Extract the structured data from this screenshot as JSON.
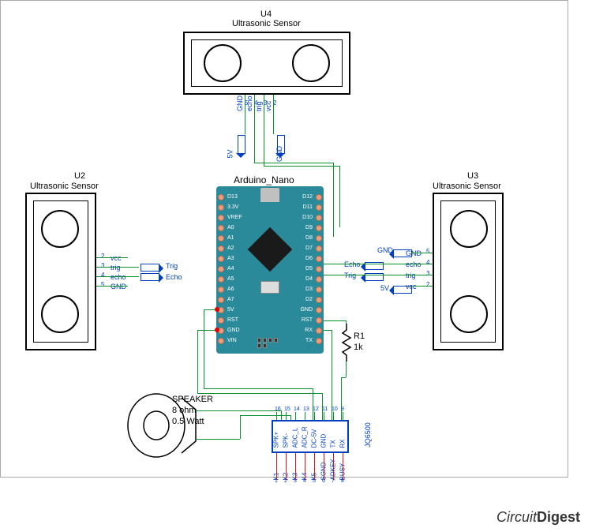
{
  "sensors": {
    "u2": {
      "ref": "U2",
      "name": "Ultrasonic Sensor",
      "pins": [
        "vcc",
        "trig",
        "echo",
        "GND"
      ],
      "nums": [
        "2",
        "3",
        "4",
        "5"
      ]
    },
    "u3": {
      "ref": "U3",
      "name": "Ultrasonic Sensor",
      "pins": [
        "GND",
        "echo",
        "trig",
        "vcc"
      ],
      "nums": [
        "5",
        "4",
        "3",
        "2"
      ]
    },
    "u4": {
      "ref": "U4",
      "name": "Ultrasonic Sensor",
      "pins": [
        "GND",
        "echo",
        "trig",
        "vcc"
      ],
      "nums": [
        "5",
        "4",
        "3",
        "2"
      ]
    }
  },
  "arduino": {
    "title": "Arduino_Nano",
    "left_pins": [
      "D13",
      "3.3V",
      "VREF",
      "A0",
      "A1",
      "A2",
      "A3",
      "A4",
      "A5",
      "A6",
      "A7",
      "5V",
      "RST",
      "GND",
      "VIN"
    ],
    "right_pins": [
      "D12",
      "D11",
      "D10",
      "D9",
      "D8",
      "D7",
      "D6",
      "D5",
      "D4",
      "D3",
      "D2",
      "GND",
      "RST",
      "RX",
      "TX"
    ]
  },
  "jq6500": {
    "ref": "JQ6500",
    "left_pins": [
      "K1",
      "K2",
      "K3",
      "K4",
      "K5",
      "SGND",
      "ADKEY",
      "BUSY"
    ],
    "right_pins": [
      "SPK+",
      "SPK-",
      "ADC_L",
      "ADC_R",
      "DC-5V",
      "GND",
      "TX",
      "RX"
    ],
    "left_nums": [
      "1",
      "2",
      "3",
      "4",
      "5",
      "6",
      "7",
      "8"
    ],
    "right_nums": [
      "16",
      "15",
      "14",
      "13",
      "12",
      "11",
      "10",
      "9"
    ]
  },
  "speaker": {
    "label1": "SPEAKER",
    "label2": "8 ohm",
    "label3": "0.5 Watt"
  },
  "resistor": {
    "ref": "R1",
    "val": "1k"
  },
  "netlabels": {
    "trig": "Trig",
    "echo": "Echo",
    "gnd": "GND",
    "v5": "5V"
  },
  "watermark": {
    "brand1": "Circuit",
    "brand2": "Digest"
  },
  "colors": {
    "wire": "#0a9030",
    "blue": "#0040c0",
    "arduino_body": "#2a8a9a",
    "pin": "#e8a080"
  }
}
